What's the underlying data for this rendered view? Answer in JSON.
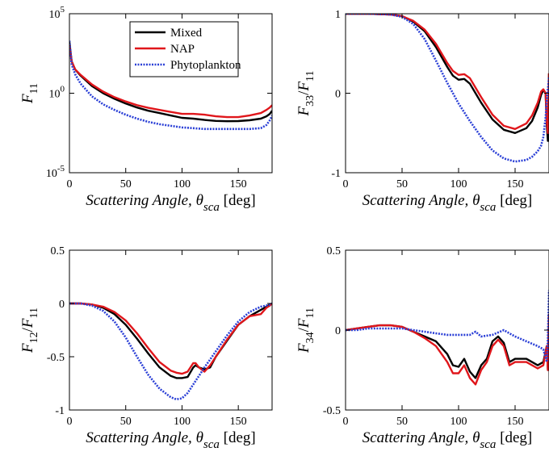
{
  "chart_data": [
    {
      "id": "f11",
      "type": "line",
      "ylabel": {
        "main": "F",
        "sub": "11"
      },
      "xlabel": {
        "prefix": "Scattering Angle, ",
        "theta": "θ",
        "sub": "sca",
        "unit": " [deg]"
      },
      "xlim": [
        0,
        180
      ],
      "ylim": [
        -5,
        5
      ],
      "y_scale": "log10",
      "x_ticks": [
        0,
        50,
        100,
        150
      ],
      "y_ticks": [
        {
          "v": -5,
          "base": "10",
          "exp": "-5"
        },
        {
          "v": 0,
          "base": "10",
          "exp": "0"
        },
        {
          "v": 5,
          "base": "10",
          "exp": "5"
        }
      ],
      "legend": {
        "position": "top-right",
        "entries": [
          "Mixed",
          "NAP",
          "Phytoplankton"
        ]
      },
      "series": [
        {
          "name": "Mixed",
          "color": "#000000",
          "style": "solid",
          "x": [
            0,
            2,
            5,
            10,
            20,
            30,
            40,
            50,
            60,
            70,
            80,
            90,
            100,
            110,
            120,
            130,
            140,
            150,
            160,
            170,
            175,
            178,
            180
          ],
          "y": [
            3.2,
            2.0,
            1.5,
            1.1,
            0.45,
            0.0,
            -0.35,
            -0.65,
            -0.9,
            -1.1,
            -1.25,
            -1.4,
            -1.55,
            -1.6,
            -1.68,
            -1.74,
            -1.76,
            -1.75,
            -1.7,
            -1.6,
            -1.45,
            -1.3,
            -1.1
          ]
        },
        {
          "name": "NAP",
          "color": "#e0161b",
          "style": "solid",
          "x": [
            0,
            2,
            5,
            10,
            20,
            30,
            40,
            50,
            60,
            70,
            80,
            90,
            100,
            110,
            120,
            130,
            140,
            150,
            160,
            170,
            175,
            178,
            180
          ],
          "y": [
            3.0,
            2.0,
            1.5,
            1.15,
            0.55,
            0.1,
            -0.25,
            -0.52,
            -0.75,
            -0.92,
            -1.05,
            -1.18,
            -1.3,
            -1.3,
            -1.35,
            -1.45,
            -1.5,
            -1.5,
            -1.4,
            -1.25,
            -1.05,
            -0.9,
            -0.75
          ]
        },
        {
          "name": "Phytoplankton",
          "color": "#2a3fd6",
          "style": "dotted",
          "x": [
            0,
            2,
            5,
            10,
            20,
            30,
            40,
            50,
            60,
            70,
            80,
            90,
            100,
            110,
            120,
            130,
            140,
            150,
            160,
            170,
            175,
            178,
            180
          ],
          "y": [
            3.3,
            1.8,
            1.2,
            0.6,
            -0.2,
            -0.7,
            -1.05,
            -1.35,
            -1.6,
            -1.8,
            -1.95,
            -2.05,
            -2.15,
            -2.2,
            -2.25,
            -2.25,
            -2.25,
            -2.25,
            -2.25,
            -2.2,
            -2.0,
            -1.7,
            -1.4
          ]
        }
      ]
    },
    {
      "id": "f33",
      "type": "line",
      "ylabel": {
        "main": "F",
        "sub": "33",
        "sep": "/",
        "main2": "F",
        "sub2": "11"
      },
      "xlabel": {
        "prefix": "Scattering Angle, ",
        "theta": "θ",
        "sub": "sca",
        "unit": " [deg]"
      },
      "xlim": [
        0,
        180
      ],
      "ylim": [
        -1,
        1
      ],
      "x_ticks": [
        0,
        50,
        100,
        150
      ],
      "y_ticks": [
        {
          "v": -1,
          "label": "-1"
        },
        {
          "v": 0,
          "label": "0"
        },
        {
          "v": 1,
          "label": "1"
        }
      ],
      "series": [
        {
          "name": "Mixed",
          "color": "#000000",
          "style": "solid",
          "x": [
            0,
            20,
            40,
            50,
            60,
            70,
            80,
            90,
            95,
            100,
            105,
            110,
            115,
            120,
            130,
            140,
            150,
            160,
            165,
            170,
            173,
            175,
            177,
            178,
            179,
            180
          ],
          "y": [
            1.0,
            1.0,
            0.99,
            0.97,
            0.9,
            0.78,
            0.58,
            0.33,
            0.22,
            0.17,
            0.18,
            0.12,
            0.0,
            -0.12,
            -0.33,
            -0.46,
            -0.5,
            -0.44,
            -0.35,
            -0.18,
            -0.02,
            0.04,
            0.0,
            -0.4,
            -0.6,
            0.25
          ]
        },
        {
          "name": "NAP",
          "color": "#e0161b",
          "style": "solid",
          "x": [
            0,
            20,
            40,
            50,
            60,
            70,
            80,
            90,
            95,
            100,
            105,
            110,
            115,
            120,
            130,
            140,
            150,
            160,
            165,
            170,
            173,
            175,
            177,
            178,
            179,
            180
          ],
          "y": [
            1.0,
            1.0,
            0.99,
            0.97,
            0.91,
            0.8,
            0.62,
            0.38,
            0.28,
            0.23,
            0.24,
            0.19,
            0.07,
            -0.05,
            -0.27,
            -0.41,
            -0.45,
            -0.38,
            -0.28,
            -0.12,
            0.02,
            0.05,
            0.0,
            -0.35,
            -0.5,
            0.25
          ]
        },
        {
          "name": "Phytoplankton",
          "color": "#2a3fd6",
          "style": "dotted",
          "x": [
            0,
            20,
            40,
            50,
            60,
            70,
            80,
            90,
            100,
            110,
            120,
            130,
            140,
            150,
            160,
            165,
            170,
            173,
            175,
            177,
            178,
            179,
            180
          ],
          "y": [
            1.0,
            1.0,
            0.99,
            0.96,
            0.87,
            0.68,
            0.41,
            0.13,
            -0.13,
            -0.35,
            -0.55,
            -0.72,
            -0.82,
            -0.86,
            -0.84,
            -0.8,
            -0.73,
            -0.66,
            -0.55,
            -0.3,
            -0.1,
            0.05,
            0.2
          ]
        }
      ]
    },
    {
      "id": "f12",
      "type": "line",
      "ylabel": {
        "main": "F",
        "sub": "12",
        "sep": "/",
        "main2": "F",
        "sub2": "11"
      },
      "xlabel": {
        "prefix": "Scattering Angle, ",
        "theta": "θ",
        "sub": "sca",
        "unit": " [deg]"
      },
      "xlim": [
        0,
        180
      ],
      "ylim": [
        -1,
        0.5
      ],
      "x_ticks": [
        0,
        50,
        100,
        150
      ],
      "y_ticks": [
        {
          "v": -1,
          "label": "-1"
        },
        {
          "v": -0.5,
          "label": "-0.5"
        },
        {
          "v": 0,
          "label": "0"
        },
        {
          "v": 0.5,
          "label": "0.5"
        }
      ],
      "series": [
        {
          "name": "Mixed",
          "color": "#000000",
          "style": "solid",
          "x": [
            0,
            10,
            20,
            30,
            40,
            50,
            60,
            70,
            80,
            90,
            95,
            100,
            105,
            110,
            112,
            115,
            120,
            125,
            130,
            140,
            150,
            160,
            170,
            175,
            178,
            180
          ],
          "y": [
            0,
            0,
            -0.01,
            -0.04,
            -0.1,
            -0.2,
            -0.33,
            -0.47,
            -0.6,
            -0.68,
            -0.7,
            -0.7,
            -0.69,
            -0.6,
            -0.58,
            -0.6,
            -0.62,
            -0.6,
            -0.5,
            -0.35,
            -0.2,
            -0.12,
            -0.06,
            -0.03,
            -0.01,
            0
          ]
        },
        {
          "name": "NAP",
          "color": "#e0161b",
          "style": "solid",
          "x": [
            0,
            10,
            20,
            30,
            40,
            50,
            60,
            70,
            80,
            90,
            95,
            100,
            105,
            110,
            112,
            115,
            120,
            125,
            130,
            140,
            150,
            160,
            170,
            175,
            178,
            180
          ],
          "y": [
            0,
            0,
            -0.01,
            -0.03,
            -0.08,
            -0.16,
            -0.28,
            -0.42,
            -0.55,
            -0.63,
            -0.65,
            -0.66,
            -0.64,
            -0.56,
            -0.56,
            -0.6,
            -0.64,
            -0.58,
            -0.5,
            -0.34,
            -0.2,
            -0.12,
            -0.1,
            -0.04,
            -0.02,
            0
          ]
        },
        {
          "name": "Phytoplankton",
          "color": "#2a3fd6",
          "style": "dotted",
          "x": [
            0,
            10,
            20,
            30,
            40,
            50,
            60,
            70,
            80,
            90,
            95,
            100,
            105,
            110,
            115,
            120,
            130,
            140,
            150,
            160,
            170,
            175,
            178,
            180
          ],
          "y": [
            0,
            0,
            -0.02,
            -0.07,
            -0.17,
            -0.32,
            -0.5,
            -0.67,
            -0.8,
            -0.88,
            -0.9,
            -0.89,
            -0.84,
            -0.76,
            -0.68,
            -0.6,
            -0.45,
            -0.3,
            -0.17,
            -0.08,
            -0.03,
            -0.02,
            -0.01,
            0
          ]
        }
      ]
    },
    {
      "id": "f34",
      "type": "line",
      "ylabel": {
        "main": "F",
        "sub": "34",
        "sep": "/",
        "main2": "F",
        "sub2": "11"
      },
      "xlabel": {
        "prefix": "Scattering Angle, ",
        "theta": "θ",
        "sub": "sca",
        "unit": " [deg]"
      },
      "xlim": [
        0,
        180
      ],
      "ylim": [
        -0.5,
        0.5
      ],
      "x_ticks": [
        0,
        50,
        100,
        150
      ],
      "y_ticks": [
        {
          "v": -0.5,
          "label": "-0.5"
        },
        {
          "v": 0,
          "label": "0"
        },
        {
          "v": 0.5,
          "label": "0.5"
        }
      ],
      "series": [
        {
          "name": "Mixed",
          "color": "#000000",
          "style": "solid",
          "x": [
            0,
            10,
            20,
            30,
            40,
            50,
            60,
            70,
            80,
            90,
            95,
            100,
            105,
            110,
            115,
            120,
            125,
            130,
            135,
            140,
            145,
            150,
            160,
            170,
            175,
            178,
            179,
            180
          ],
          "y": [
            0,
            0.01,
            0.02,
            0.03,
            0.03,
            0.02,
            -0.01,
            -0.04,
            -0.07,
            -0.15,
            -0.22,
            -0.23,
            -0.18,
            -0.26,
            -0.3,
            -0.22,
            -0.18,
            -0.07,
            -0.04,
            -0.08,
            -0.2,
            -0.18,
            -0.18,
            -0.22,
            -0.2,
            -0.1,
            -0.25,
            0.1
          ]
        },
        {
          "name": "NAP",
          "color": "#e0161b",
          "style": "solid",
          "x": [
            0,
            10,
            20,
            30,
            40,
            50,
            60,
            70,
            80,
            90,
            95,
            100,
            105,
            110,
            115,
            120,
            125,
            130,
            135,
            140,
            145,
            150,
            160,
            170,
            175,
            178,
            179,
            180
          ],
          "y": [
            0,
            0.01,
            0.02,
            0.03,
            0.03,
            0.02,
            -0.01,
            -0.05,
            -0.1,
            -0.2,
            -0.27,
            -0.27,
            -0.22,
            -0.3,
            -0.34,
            -0.25,
            -0.2,
            -0.1,
            -0.06,
            -0.1,
            -0.22,
            -0.2,
            -0.2,
            -0.24,
            -0.22,
            -0.1,
            -0.25,
            0.1
          ]
        },
        {
          "name": "Phytoplankton",
          "color": "#2a3fd6",
          "style": "dotted",
          "x": [
            0,
            10,
            20,
            30,
            40,
            50,
            60,
            70,
            80,
            90,
            100,
            110,
            115,
            120,
            130,
            140,
            145,
            150,
            160,
            170,
            175,
            178,
            179,
            180
          ],
          "y": [
            0,
            0.0,
            0.01,
            0.01,
            0.01,
            0.01,
            0.0,
            -0.01,
            -0.02,
            -0.03,
            -0.03,
            -0.03,
            -0.01,
            -0.04,
            -0.03,
            0.0,
            -0.02,
            -0.04,
            -0.07,
            -0.1,
            -0.12,
            -0.2,
            -0.05,
            0.25
          ]
        }
      ]
    }
  ]
}
